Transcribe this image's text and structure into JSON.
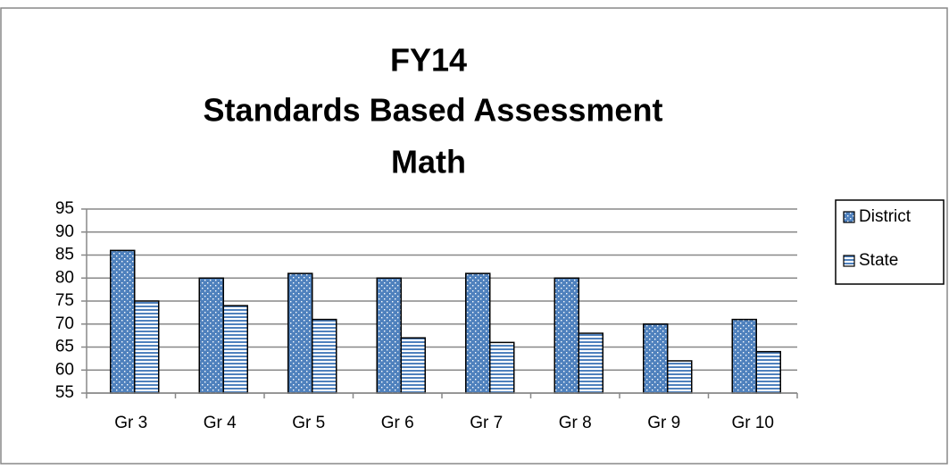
{
  "chart_data": {
    "type": "bar",
    "title": [
      "FY14",
      "Standards Based Assessment",
      "Math"
    ],
    "categories": [
      "Gr 3",
      "Gr 4",
      "Gr 5",
      "Gr 6",
      "Gr 7",
      "Gr 8",
      "Gr 9",
      "Gr 10"
    ],
    "series": [
      {
        "name": "District",
        "color": "#4f81bd",
        "values": [
          86,
          80,
          81,
          80,
          81,
          80,
          70,
          71
        ]
      },
      {
        "name": "State",
        "color": "#4f81bd",
        "values": [
          75,
          74,
          71,
          67,
          66,
          68,
          62,
          64
        ]
      }
    ],
    "ylim": [
      55,
      95
    ],
    "yticks": [
      55,
      60,
      65,
      70,
      75,
      80,
      85,
      90,
      95
    ],
    "grid": true,
    "legend": "right"
  }
}
